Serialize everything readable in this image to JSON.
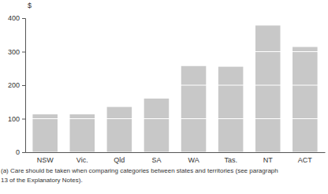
{
  "chart_data": {
    "type": "bar",
    "y_label": "$",
    "categories": [
      "NSW",
      "Vic.",
      "Qld",
      "SA",
      "WA",
      "Tas.",
      "NT",
      "ACT"
    ],
    "values": [
      113,
      113,
      135,
      160,
      257,
      255,
      378,
      314
    ],
    "color": "#c8c8c8",
    "ylim": [
      0,
      400
    ],
    "yticks": [
      0,
      100,
      200,
      300,
      400
    ],
    "grid": true,
    "annotations": [
      "(a) Care should be taken when comparing categories between states and territories (see paragraph",
      "13 of the Explanatory Notes)."
    ]
  }
}
